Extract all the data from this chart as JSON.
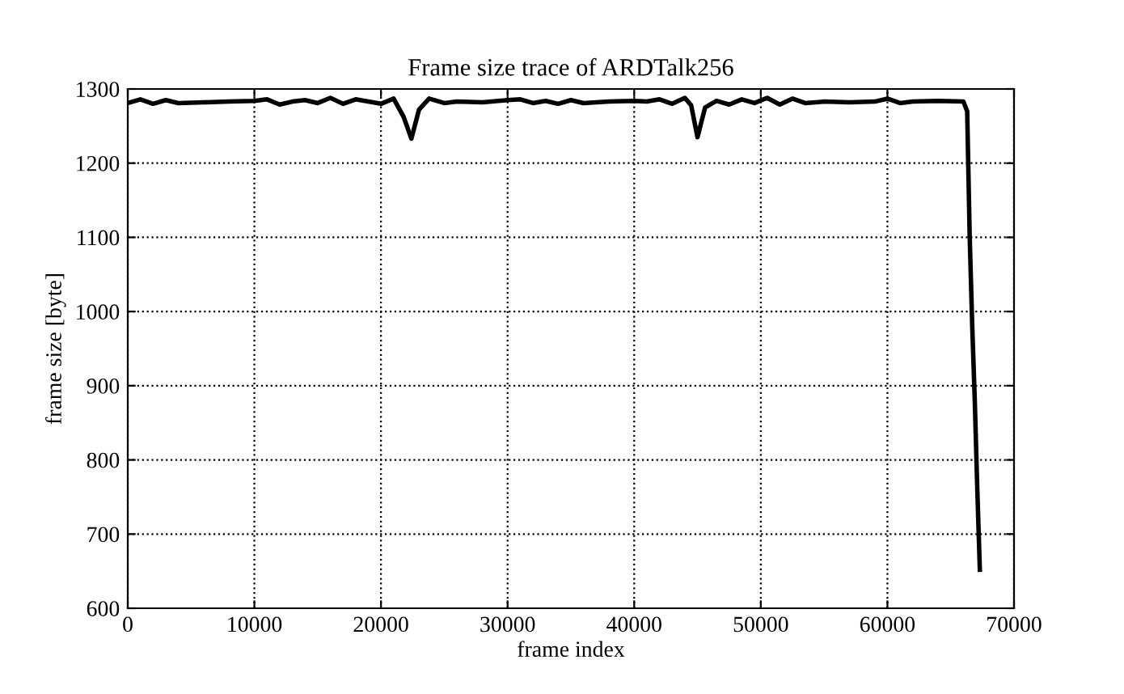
{
  "chart_data": {
    "type": "line",
    "title": "Frame size trace of ARDTalk256",
    "xlabel": "frame index",
    "ylabel": "frame size [byte]",
    "series": [
      {
        "color": "#000000",
        "x": [
          0,
          1000,
          2000,
          3000,
          4000,
          6000,
          8000,
          10000,
          11000,
          12000,
          13000,
          14000,
          15000,
          16000,
          17000,
          18000,
          19000,
          20000,
          21000,
          21800,
          22400,
          23000,
          23800,
          25000,
          26000,
          28000,
          30000,
          31000,
          32000,
          33000,
          34000,
          35000,
          36000,
          38000,
          40000,
          41000,
          42000,
          43000,
          44000,
          44500,
          45000,
          45600,
          46500,
          47500,
          48500,
          49500,
          50500,
          51500,
          52500,
          53500,
          55000,
          57000,
          59000,
          60000,
          61000,
          62000,
          64000,
          66000,
          66300,
          66500,
          66700,
          66900,
          67100,
          67300
        ],
        "values": [
          1281,
          1286,
          1280,
          1285,
          1281,
          1282,
          1283,
          1284,
          1286,
          1279,
          1283,
          1285,
          1281,
          1288,
          1280,
          1286,
          1283,
          1280,
          1287,
          1262,
          1233,
          1272,
          1287,
          1281,
          1283,
          1282,
          1285,
          1286,
          1281,
          1284,
          1280,
          1285,
          1281,
          1283,
          1284,
          1283,
          1286,
          1280,
          1288,
          1278,
          1235,
          1275,
          1284,
          1279,
          1286,
          1281,
          1288,
          1279,
          1287,
          1281,
          1283,
          1282,
          1283,
          1287,
          1281,
          1283,
          1284,
          1283,
          1270,
          1100,
          980,
          880,
          760,
          652
        ]
      }
    ],
    "xlim": [
      0,
      70000
    ],
    "ylim": [
      600,
      1300
    ],
    "xticks": [
      0,
      10000,
      20000,
      30000,
      40000,
      50000,
      60000,
      70000
    ],
    "yticks": [
      600,
      700,
      800,
      900,
      1000,
      1100,
      1200,
      1300
    ],
    "grid": true,
    "line_style": "solid"
  }
}
